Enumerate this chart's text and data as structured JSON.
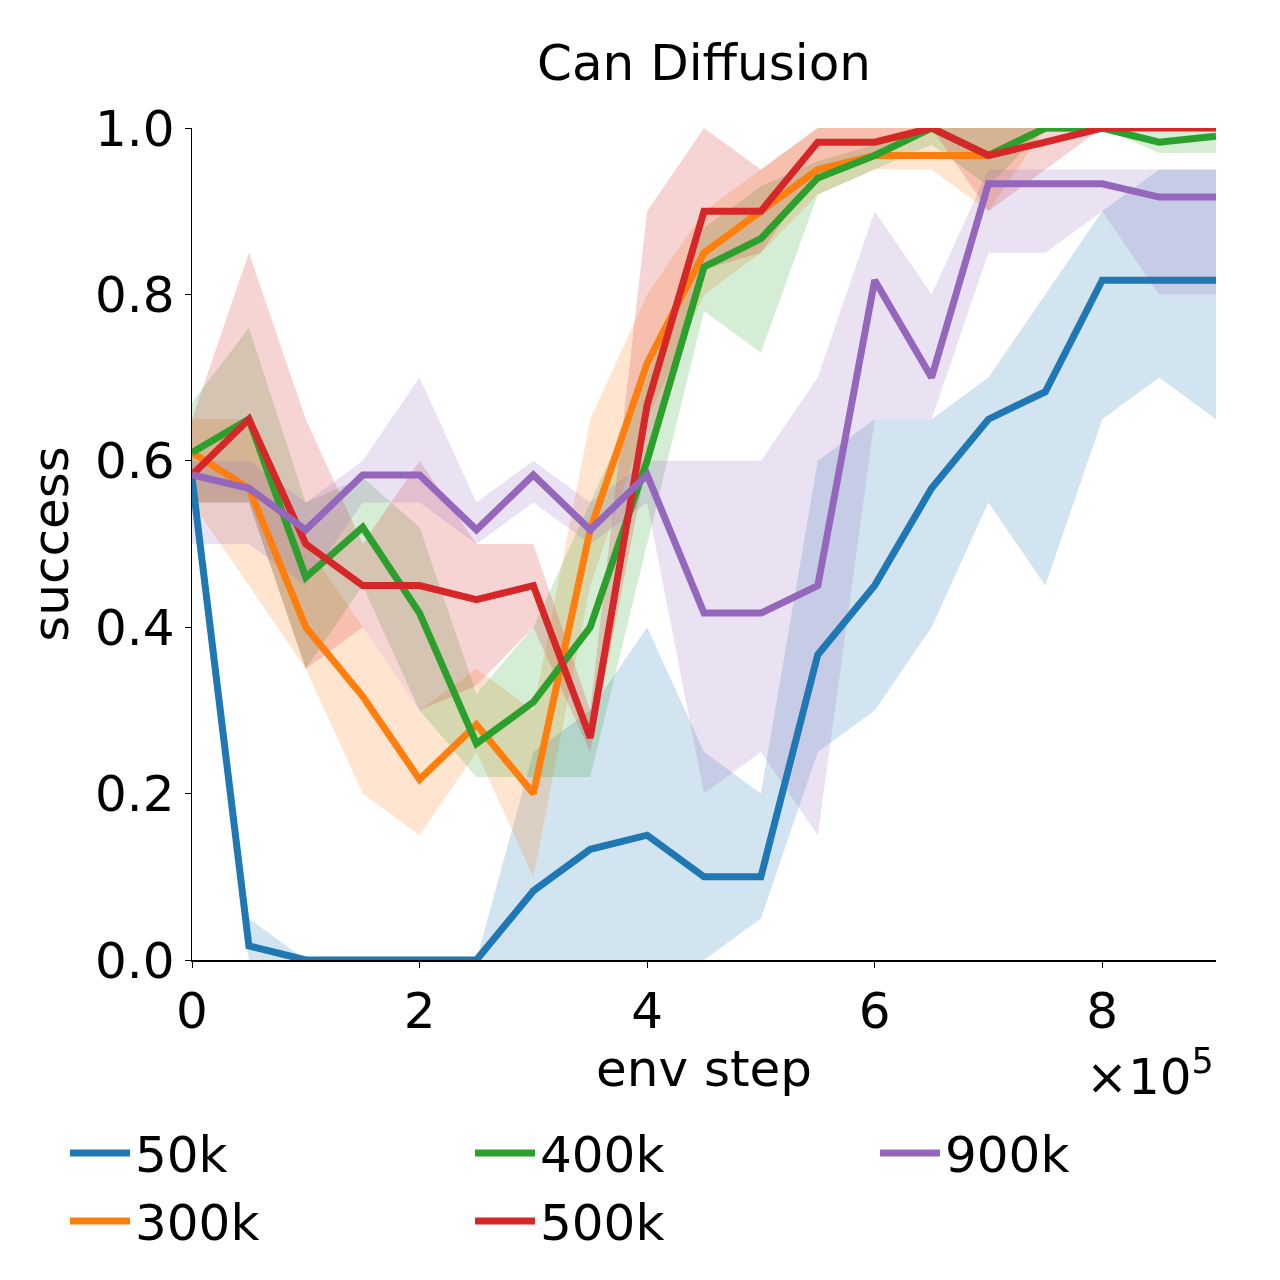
{
  "chart_data": {
    "type": "line",
    "title": "Can Diffusion",
    "xlabel": "env step",
    "ylabel": "success",
    "x": [
      0,
      0.5,
      1,
      1.5,
      2,
      2.5,
      3,
      3.5,
      4,
      4.5,
      5,
      5.5,
      6,
      6.5,
      7,
      7.5,
      8,
      8.5,
      9
    ],
    "xlim": [
      0,
      9
    ],
    "xticks": [
      0,
      2,
      4,
      6,
      8
    ],
    "ylim": [
      0,
      1
    ],
    "yticks": [
      {
        "value": 0,
        "label": "0.0"
      },
      {
        "value": 0.2,
        "label": "0.2"
      },
      {
        "value": 0.4,
        "label": "0.4"
      },
      {
        "value": 0.6,
        "label": "0.6"
      },
      {
        "value": 0.8,
        "label": "0.8"
      },
      {
        "value": 1,
        "label": "1.0"
      }
    ],
    "grid": false,
    "legend": "bottom",
    "marker": "none",
    "line_style": "solid",
    "annotations": [
      "×10$^{5}$"
    ],
    "series": [
      {
        "name": "50k",
        "color": "#1f77b4",
        "values": [
          0.58,
          0.017,
          0,
          0,
          0,
          0,
          0.083,
          0.133,
          0.15,
          0.1,
          0.1,
          0.367,
          0.45,
          0.567,
          0.65,
          0.683,
          0.817,
          0.817,
          0.817
        ],
        "lower": [
          0.55,
          0,
          0,
          0,
          0,
          0,
          0,
          0,
          0,
          0,
          0.05,
          0.25,
          0.3,
          0.4,
          0.55,
          0.45,
          0.65,
          0.7,
          0.65
        ],
        "upper": [
          0.6,
          0.05,
          0,
          0,
          0,
          0,
          0.25,
          0.3,
          0.4,
          0.25,
          0.2,
          0.6,
          0.65,
          0.65,
          0.7,
          0.8,
          0.9,
          0.95,
          0.95
        ]
      },
      {
        "name": "300k",
        "color": "#ff7f0e",
        "values": [
          0.61,
          0.567,
          0.4,
          0.317,
          0.217,
          0.283,
          0.2,
          0.517,
          0.717,
          0.85,
          0.9,
          0.95,
          0.967,
          0.967,
          0.967,
          1,
          1,
          null,
          null
        ],
        "lower": [
          0.55,
          0.45,
          0.35,
          0.2,
          0.15,
          0.25,
          0.1,
          0.45,
          0.65,
          0.8,
          0.85,
          0.92,
          0.95,
          0.95,
          0.9,
          1,
          1,
          1,
          1
        ],
        "upper": [
          0.65,
          0.65,
          0.5,
          0.4,
          0.3,
          0.35,
          0.3,
          0.65,
          0.8,
          0.9,
          0.95,
          1,
          1,
          1,
          1,
          1,
          1,
          1,
          1
        ]
      },
      {
        "name": "400k",
        "color": "#2ca02c",
        "values": [
          0.61,
          0.65,
          0.46,
          0.52,
          0.417,
          0.26,
          0.31,
          0.4,
          0.6,
          0.833,
          0.867,
          0.94,
          0.967,
          1,
          0.967,
          1,
          1,
          0.983,
          0.99
        ],
        "lower": [
          0.55,
          0.55,
          0.35,
          0.45,
          0.3,
          0.22,
          0.22,
          0.22,
          0.5,
          0.78,
          0.73,
          0.92,
          0.95,
          0.98,
          0.93,
          1,
          1,
          0.97,
          0.97
        ],
        "upper": [
          0.67,
          0.76,
          0.55,
          0.58,
          0.52,
          0.32,
          0.4,
          0.55,
          0.7,
          0.88,
          0.93,
          0.96,
          0.98,
          1,
          1,
          1,
          1,
          1,
          1
        ]
      },
      {
        "name": "500k",
        "color": "#d62728",
        "values": [
          0.583,
          0.65,
          0.5,
          0.45,
          0.45,
          0.433,
          0.45,
          0.267,
          0.667,
          0.9,
          0.9,
          0.983,
          0.983,
          1,
          0.967,
          0.983,
          1,
          1,
          1
        ],
        "lower": [
          0.55,
          0.55,
          0.35,
          0.4,
          0.3,
          0.33,
          0.4,
          0.25,
          0.6,
          0.83,
          0.85,
          0.95,
          0.97,
          1,
          0.9,
          0.95,
          1,
          1,
          1
        ],
        "upper": [
          0.65,
          0.85,
          0.65,
          0.5,
          0.6,
          0.5,
          0.5,
          0.3,
          0.9,
          1,
          0.95,
          1,
          1,
          1,
          1,
          1,
          1,
          1,
          1
        ]
      },
      {
        "name": "900k",
        "color": "#9467bd",
        "values": [
          0.583,
          0.567,
          0.517,
          0.583,
          0.583,
          0.517,
          0.583,
          0.517,
          0.583,
          0.417,
          0.417,
          0.45,
          0.817,
          0.7,
          0.933,
          0.933,
          0.933,
          0.917,
          0.917
        ],
        "lower": [
          0.5,
          0.5,
          0.45,
          0.55,
          0.55,
          0.5,
          0.55,
          0.5,
          0.55,
          0.2,
          0.25,
          0.15,
          0.65,
          0.65,
          0.85,
          0.85,
          0.9,
          0.8,
          0.8
        ],
        "upper": [
          0.6,
          0.6,
          0.55,
          0.6,
          0.7,
          0.55,
          0.6,
          0.55,
          0.6,
          0.6,
          0.6,
          0.7,
          0.9,
          0.8,
          0.95,
          0.95,
          0.95,
          0.95,
          0.95
        ]
      }
    ]
  }
}
